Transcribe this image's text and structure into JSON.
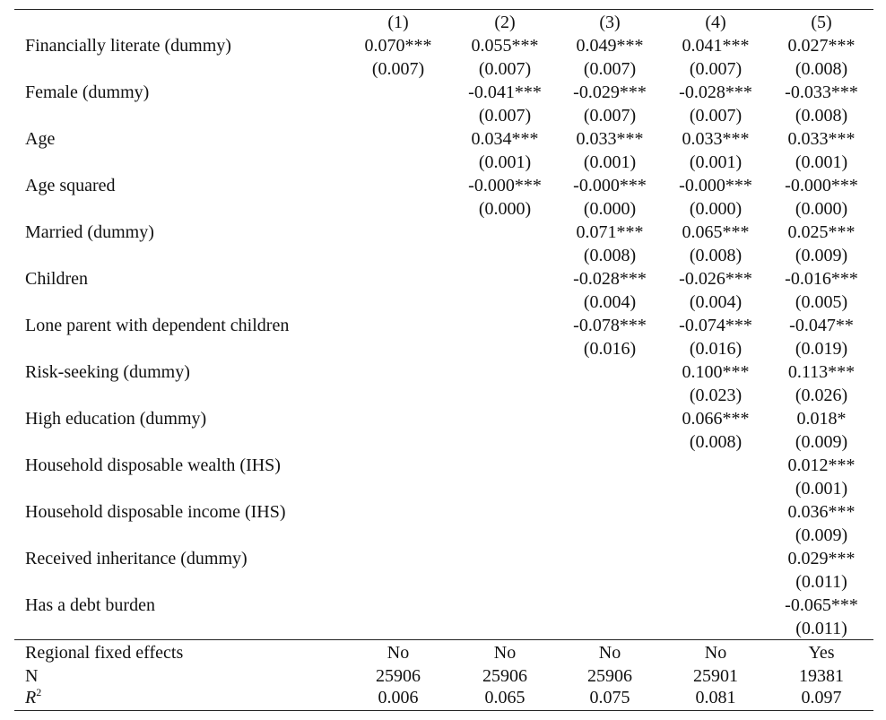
{
  "table": {
    "columns": [
      "(1)",
      "(2)",
      "(3)",
      "(4)",
      "(5)"
    ],
    "rows": [
      {
        "label": "Financially literate (dummy)",
        "coef": [
          "0.070***",
          "0.055***",
          "0.049***",
          "0.041***",
          "0.027***"
        ],
        "se": [
          "(0.007)",
          "(0.007)",
          "(0.007)",
          "(0.007)",
          "(0.008)"
        ]
      },
      {
        "label": "Female (dummy)",
        "coef": [
          "",
          "-0.041***",
          "-0.029***",
          "-0.028***",
          "-0.033***"
        ],
        "se": [
          "",
          "(0.007)",
          "(0.007)",
          "(0.007)",
          "(0.008)"
        ]
      },
      {
        "label": "Age",
        "coef": [
          "",
          "0.034***",
          "0.033***",
          "0.033***",
          "0.033***"
        ],
        "se": [
          "",
          "(0.001)",
          "(0.001)",
          "(0.001)",
          "(0.001)"
        ]
      },
      {
        "label": "Age squared",
        "coef": [
          "",
          "-0.000***",
          "-0.000***",
          "-0.000***",
          "-0.000***"
        ],
        "se": [
          "",
          "(0.000)",
          "(0.000)",
          "(0.000)",
          "(0.000)"
        ]
      },
      {
        "label": "Married (dummy)",
        "coef": [
          "",
          "",
          "0.071***",
          "0.065***",
          "0.025***"
        ],
        "se": [
          "",
          "",
          "(0.008)",
          "(0.008)",
          "(0.009)"
        ]
      },
      {
        "label": "Children",
        "coef": [
          "",
          "",
          "-0.028***",
          "-0.026***",
          "-0.016***"
        ],
        "se": [
          "",
          "",
          "(0.004)",
          "(0.004)",
          "(0.005)"
        ]
      },
      {
        "label": "Lone parent with dependent children",
        "coef": [
          "",
          "",
          "-0.078***",
          "-0.074***",
          "-0.047**"
        ],
        "se": [
          "",
          "",
          "(0.016)",
          "(0.016)",
          "(0.019)"
        ]
      },
      {
        "label": "Risk-seeking (dummy)",
        "coef": [
          "",
          "",
          "",
          "0.100***",
          "0.113***"
        ],
        "se": [
          "",
          "",
          "",
          "(0.023)",
          "(0.026)"
        ]
      },
      {
        "label": "High education (dummy)",
        "coef": [
          "",
          "",
          "",
          "0.066***",
          "0.018*"
        ],
        "se": [
          "",
          "",
          "",
          "(0.008)",
          "(0.009)"
        ]
      },
      {
        "label": "Household disposable wealth (IHS)",
        "coef": [
          "",
          "",
          "",
          "",
          "0.012***"
        ],
        "se": [
          "",
          "",
          "",
          "",
          "(0.001)"
        ]
      },
      {
        "label": "Household disposable income (IHS)",
        "coef": [
          "",
          "",
          "",
          "",
          "0.036***"
        ],
        "se": [
          "",
          "",
          "",
          "",
          "(0.009)"
        ]
      },
      {
        "label": "Received inheritance (dummy)",
        "coef": [
          "",
          "",
          "",
          "",
          "0.029***"
        ],
        "se": [
          "",
          "",
          "",
          "",
          "(0.011)"
        ]
      },
      {
        "label": "Has a debt burden",
        "coef": [
          "",
          "",
          "",
          "",
          "-0.065***"
        ],
        "se": [
          "",
          "",
          "",
          "",
          "(0.011)"
        ]
      }
    ],
    "footer": [
      {
        "label": "Regional fixed effects",
        "values": [
          "No",
          "No",
          "No",
          "No",
          "Yes"
        ]
      },
      {
        "label": "N",
        "values": [
          "25906",
          "25906",
          "25906",
          "25901",
          "19381"
        ]
      },
      {
        "label_base": "R",
        "label_sup": "2",
        "values": [
          "0.006",
          "0.065",
          "0.075",
          "0.081",
          "0.097"
        ]
      }
    ]
  }
}
